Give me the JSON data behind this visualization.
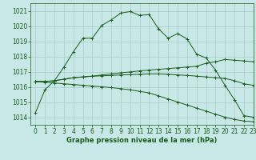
{
  "title": "Graphe pression niveau de la mer (hPa)",
  "bg_color": "#c8e8e8",
  "grid_color": "#aacaca",
  "line_color": "#1a5c1a",
  "xlim": [
    -0.5,
    23
  ],
  "ylim": [
    1013.5,
    1021.5
  ],
  "yticks": [
    1014,
    1015,
    1016,
    1017,
    1018,
    1019,
    1020,
    1021
  ],
  "xticks": [
    0,
    1,
    2,
    3,
    4,
    5,
    6,
    7,
    8,
    9,
    10,
    11,
    12,
    13,
    14,
    15,
    16,
    17,
    18,
    19,
    20,
    21,
    22,
    23
  ],
  "series": [
    [
      1014.3,
      1015.8,
      1016.4,
      1017.3,
      1018.3,
      1019.2,
      1019.2,
      1020.05,
      1020.4,
      1020.85,
      1020.95,
      1020.7,
      1020.75,
      1019.8,
      1019.2,
      1019.5,
      1019.15,
      1018.15,
      1017.9,
      1017.1,
      1016.1,
      1015.15,
      1014.1,
      1014.0
    ],
    [
      1016.35,
      1016.35,
      1016.4,
      1016.5,
      1016.6,
      1016.65,
      1016.7,
      1016.78,
      1016.85,
      1016.92,
      1016.98,
      1017.05,
      1017.1,
      1017.15,
      1017.2,
      1017.25,
      1017.3,
      1017.35,
      1017.55,
      1017.65,
      1017.8,
      1017.75,
      1017.7,
      1017.65
    ],
    [
      1016.35,
      1016.35,
      1016.4,
      1016.5,
      1016.6,
      1016.65,
      1016.7,
      1016.72,
      1016.75,
      1016.78,
      1016.8,
      1016.82,
      1016.85,
      1016.85,
      1016.82,
      1016.78,
      1016.75,
      1016.7,
      1016.65,
      1016.6,
      1016.55,
      1016.4,
      1016.2,
      1016.1
    ],
    [
      1016.35,
      1016.3,
      1016.25,
      1016.2,
      1016.15,
      1016.1,
      1016.05,
      1016.0,
      1015.95,
      1015.88,
      1015.8,
      1015.7,
      1015.6,
      1015.4,
      1015.2,
      1015.0,
      1014.8,
      1014.6,
      1014.4,
      1014.2,
      1014.0,
      1013.85,
      1013.75,
      1013.7
    ]
  ],
  "figsize": [
    3.2,
    2.0
  ],
  "dpi": 100,
  "tick_fontsize": 5.5,
  "xlabel_fontsize": 6.0
}
